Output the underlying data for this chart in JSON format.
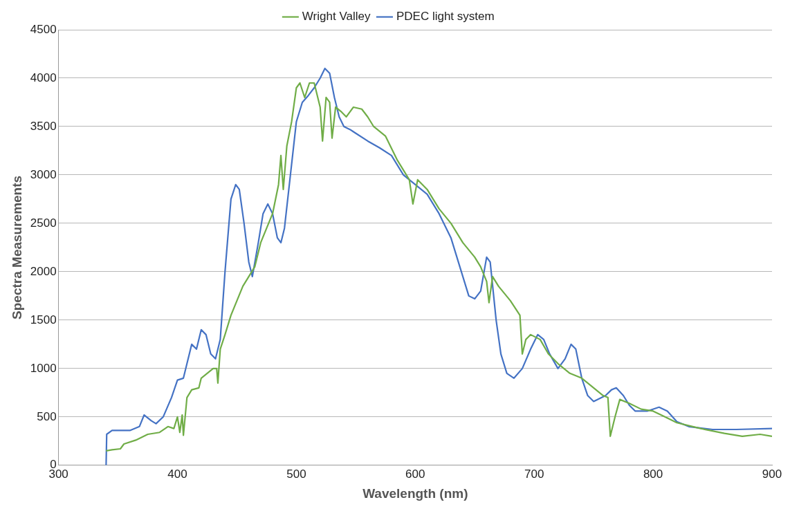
{
  "chart_data": {
    "type": "line",
    "xlabel": "Wavelength (nm)",
    "ylabel": "Spectra Measurements",
    "xlim": [
      300,
      900
    ],
    "xticks": [
      300,
      400,
      500,
      600,
      700,
      800,
      900
    ],
    "ylim": [
      0,
      4500
    ],
    "yticks": [
      0,
      500,
      1000,
      1500,
      2000,
      2500,
      3000,
      3500,
      4000,
      4500
    ],
    "grid": "y",
    "legend": "top",
    "series": [
      {
        "name": "Wright Valley",
        "color": "#70ad47",
        "x": [
          340,
          345,
          352,
          355,
          365,
          375,
          385,
          392,
          397,
          400,
          402,
          404,
          405,
          408,
          412,
          418,
          420,
          425,
          430,
          433,
          434,
          436,
          440,
          445,
          450,
          455,
          460,
          465,
          470,
          475,
          480,
          485,
          487,
          489,
          492,
          496,
          500,
          503,
          507,
          511,
          515,
          520,
          522,
          525,
          528,
          530,
          533,
          538,
          542,
          548,
          555,
          560,
          565,
          575,
          585,
          590,
          595,
          598,
          602,
          610,
          620,
          630,
          640,
          650,
          655,
          660,
          662,
          665,
          670,
          680,
          688,
          690,
          693,
          697,
          705,
          712,
          720,
          725,
          730,
          740,
          750,
          758,
          762,
          764,
          768,
          772,
          780,
          790,
          800,
          810,
          820,
          840,
          860,
          875,
          890,
          900
        ],
        "values": [
          150,
          160,
          170,
          220,
          260,
          320,
          340,
          400,
          380,
          500,
          340,
          520,
          310,
          700,
          780,
          800,
          900,
          950,
          1000,
          1000,
          850,
          1200,
          1350,
          1550,
          1700,
          1850,
          1950,
          2050,
          2300,
          2450,
          2600,
          2900,
          3200,
          2850,
          3300,
          3550,
          3900,
          3950,
          3800,
          3950,
          3950,
          3700,
          3350,
          3800,
          3750,
          3380,
          3700,
          3650,
          3600,
          3700,
          3680,
          3600,
          3500,
          3400,
          3150,
          3050,
          2950,
          2700,
          2950,
          2850,
          2650,
          2500,
          2300,
          2150,
          2050,
          1900,
          1680,
          1950,
          1850,
          1700,
          1550,
          1150,
          1300,
          1350,
          1300,
          1150,
          1050,
          1000,
          950,
          900,
          800,
          720,
          700,
          300,
          500,
          680,
          640,
          580,
          560,
          500,
          440,
          380,
          330,
          300,
          320,
          300
        ]
      },
      {
        "name": "PDEC light system",
        "color": "#4472c4",
        "x": [
          340,
          340.5,
          345,
          360,
          368,
          372,
          378,
          382,
          388,
          395,
          400,
          405,
          408,
          412,
          416,
          420,
          424,
          428,
          432,
          436,
          440,
          445,
          449,
          452,
          456,
          460,
          463,
          468,
          472,
          476,
          480,
          484,
          487,
          490,
          495,
          500,
          505,
          510,
          515,
          520,
          524,
          528,
          532,
          536,
          540,
          545,
          550,
          560,
          570,
          580,
          590,
          600,
          610,
          620,
          630,
          640,
          645,
          650,
          655,
          660,
          663,
          668,
          672,
          677,
          683,
          690,
          697,
          703,
          708,
          713,
          720,
          726,
          731,
          735,
          740,
          745,
          750,
          755,
          760,
          765,
          769,
          775,
          780,
          785,
          795,
          805,
          812,
          820,
          830,
          850,
          870,
          900
        ],
        "values": [
          0,
          320,
          360,
          360,
          400,
          520,
          460,
          430,
          500,
          700,
          880,
          900,
          1050,
          1250,
          1200,
          1400,
          1350,
          1150,
          1100,
          1300,
          2000,
          2750,
          2900,
          2850,
          2500,
          2100,
          1950,
          2300,
          2600,
          2700,
          2600,
          2350,
          2300,
          2450,
          3000,
          3550,
          3750,
          3820,
          3900,
          4000,
          4100,
          4050,
          3800,
          3600,
          3500,
          3470,
          3430,
          3350,
          3280,
          3200,
          3000,
          2900,
          2800,
          2600,
          2350,
          1950,
          1750,
          1720,
          1800,
          2150,
          2100,
          1500,
          1150,
          950,
          900,
          1000,
          1200,
          1350,
          1300,
          1150,
          1000,
          1100,
          1250,
          1200,
          900,
          720,
          660,
          690,
          720,
          780,
          800,
          720,
          620,
          560,
          560,
          600,
          560,
          450,
          400,
          370,
          370,
          380
        ]
      }
    ]
  }
}
